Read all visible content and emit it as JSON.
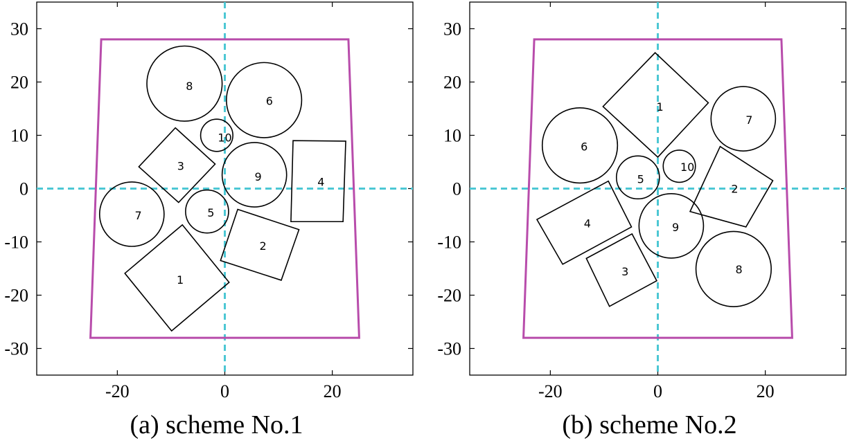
{
  "style": {
    "boundary_color": "#b84cab",
    "axis_color": "#4cc7d4",
    "shape_color": "#000000"
  },
  "axes": {
    "xlim": [
      -35,
      35
    ],
    "ylim": [
      -35,
      35
    ],
    "xticks": [
      -20,
      0,
      20
    ],
    "yticks": [
      30,
      20,
      10,
      0,
      -10,
      -20,
      -30
    ],
    "xtick_labels": [
      "-20",
      "0",
      "20"
    ],
    "ytick_labels": [
      "30",
      "20",
      "10",
      "0",
      "-10",
      "-20",
      "-30"
    ]
  },
  "schemes": [
    {
      "caption": "(a) scheme No.1",
      "boundary": [
        [
          -23,
          28
        ],
        [
          23,
          28
        ],
        [
          25,
          -28
        ],
        [
          -25,
          -28
        ]
      ],
      "circles": [
        {
          "label": "5",
          "cx": -3.3,
          "cy": -4.3,
          "r": 4.0
        },
        {
          "label": "6",
          "cx": 7.3,
          "cy": 16.6,
          "r": 7.0
        },
        {
          "label": "7",
          "cx": -17.3,
          "cy": -4.8,
          "r": 6.0
        },
        {
          "label": "8",
          "cx": -7.5,
          "cy": 19.7,
          "r": 7.0
        },
        {
          "label": "9",
          "cx": 5.5,
          "cy": 2.6,
          "r": 6.0
        },
        {
          "label": "10",
          "cx": -1.5,
          "cy": 10.0,
          "r": 3.0
        }
      ],
      "polygons": [
        {
          "label": "1",
          "points": [
            [
              -18.6,
              -15.9
            ],
            [
              -7.9,
              -6.8
            ],
            [
              0.8,
              -17.6
            ],
            [
              -9.9,
              -26.7
            ]
          ]
        },
        {
          "label": "2",
          "points": [
            [
              -0.8,
              -13.5
            ],
            [
              10.5,
              -17.2
            ],
            [
              13.8,
              -7.7
            ],
            [
              2.4,
              -3.9
            ]
          ]
        },
        {
          "label": "3",
          "points": [
            [
              -16.0,
              4.1
            ],
            [
              -9.2,
              11.4
            ],
            [
              -1.8,
              4.6
            ],
            [
              -8.6,
              -2.6
            ]
          ]
        },
        {
          "label": "4",
          "points": [
            [
              12.7,
              9.0
            ],
            [
              22.5,
              8.9
            ],
            [
              22.0,
              -6.2
            ],
            [
              12.3,
              -6.2
            ]
          ]
        }
      ],
      "labels": [
        {
          "text": "1",
          "x": -8.3,
          "y": -17.1
        },
        {
          "text": "2",
          "x": 7.1,
          "y": -10.7
        },
        {
          "text": "3",
          "x": -8.2,
          "y": 4.3
        },
        {
          "text": "4",
          "x": 17.9,
          "y": 1.3
        },
        {
          "text": "5",
          "x": -2.6,
          "y": -4.5
        },
        {
          "text": "6",
          "x": 8.3,
          "y": 16.5
        },
        {
          "text": "7",
          "x": -16.1,
          "y": -5.0
        },
        {
          "text": "8",
          "x": -6.6,
          "y": 19.3
        },
        {
          "text": "9",
          "x": 6.2,
          "y": 2.3
        },
        {
          "text": "10",
          "x": 0.0,
          "y": 9.6
        }
      ]
    },
    {
      "caption": "(b) scheme No.2",
      "boundary": [
        [
          -23,
          28
        ],
        [
          23,
          28
        ],
        [
          25,
          -28
        ],
        [
          -25,
          -28
        ]
      ],
      "circles": [
        {
          "label": "5",
          "cx": -3.7,
          "cy": 2.1,
          "r": 4.0
        },
        {
          "label": "6",
          "cx": -14.5,
          "cy": 8.1,
          "r": 7.0
        },
        {
          "label": "7",
          "cx": 15.9,
          "cy": 13.1,
          "r": 6.0
        },
        {
          "label": "8",
          "cx": 14.1,
          "cy": -15.1,
          "r": 7.0
        },
        {
          "label": "9",
          "cx": 2.5,
          "cy": -7.0,
          "r": 6.0
        },
        {
          "label": "10",
          "cx": 4.0,
          "cy": 4.2,
          "r": 3.0
        }
      ],
      "polygons": [
        {
          "label": "1",
          "points": [
            [
              -10.2,
              15.4
            ],
            [
              -0.5,
              25.5
            ],
            [
              9.4,
              16.1
            ],
            [
              0.0,
              5.9
            ]
          ]
        },
        {
          "label": "2",
          "points": [
            [
              6.0,
              -4.3
            ],
            [
              16.4,
              -7.2
            ],
            [
              21.4,
              1.5
            ],
            [
              11.6,
              7.9
            ]
          ]
        },
        {
          "label": "3",
          "points": [
            [
              -13.3,
              -13.1
            ],
            [
              -9.0,
              -22.1
            ],
            [
              -0.2,
              -17.3
            ],
            [
              -4.8,
              -8.5
            ]
          ]
        },
        {
          "label": "4",
          "points": [
            [
              -22.5,
              -5.8
            ],
            [
              -17.7,
              -14.2
            ],
            [
              -4.9,
              -7.2
            ],
            [
              -9.2,
              1.4
            ]
          ]
        }
      ],
      "labels": [
        {
          "text": "1",
          "x": 0.4,
          "y": 15.4
        },
        {
          "text": "2",
          "x": 14.3,
          "y": 0.0
        },
        {
          "text": "3",
          "x": -6.1,
          "y": -15.5
        },
        {
          "text": "4",
          "x": -13.1,
          "y": -6.5
        },
        {
          "text": "5",
          "x": -3.2,
          "y": 1.8
        },
        {
          "text": "6",
          "x": -13.7,
          "y": 7.9
        },
        {
          "text": "7",
          "x": 17.0,
          "y": 12.9
        },
        {
          "text": "8",
          "x": 15.1,
          "y": -15.1
        },
        {
          "text": "9",
          "x": 3.3,
          "y": -7.2
        },
        {
          "text": "10",
          "x": 5.5,
          "y": 4.1
        }
      ]
    }
  ]
}
